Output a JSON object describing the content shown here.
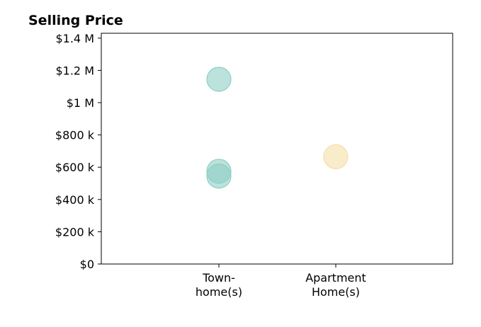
{
  "chart_data": {
    "type": "scatter",
    "title": "Selling Price",
    "xlabel": "",
    "ylabel": "",
    "grid": false,
    "categories": [
      [
        "Town-",
        "home(s)"
      ],
      [
        "Apartment",
        "Home(s)"
      ]
    ],
    "ylim": [
      0,
      1430000
    ],
    "yticks": [
      {
        "value": 0,
        "label": "$0"
      },
      {
        "value": 200000,
        "label": "$200 k"
      },
      {
        "value": 400000,
        "label": "$400 k"
      },
      {
        "value": 600000,
        "label": "$600 k"
      },
      {
        "value": 800000,
        "label": "$800 k"
      },
      {
        "value": 1000000,
        "label": "$1 M"
      },
      {
        "value": 1200000,
        "label": "$1.2 M"
      },
      {
        "value": 1400000,
        "label": "$1.4 M"
      }
    ],
    "points": [
      {
        "category": 0,
        "value": 1145000,
        "color": "#8ecfc4"
      },
      {
        "category": 0,
        "value": 575000,
        "color": "#8ecfc4"
      },
      {
        "category": 0,
        "value": 545000,
        "color": "#8ecfc4"
      },
      {
        "category": 1,
        "value": 665000,
        "color": "#f5dfa8"
      }
    ]
  }
}
